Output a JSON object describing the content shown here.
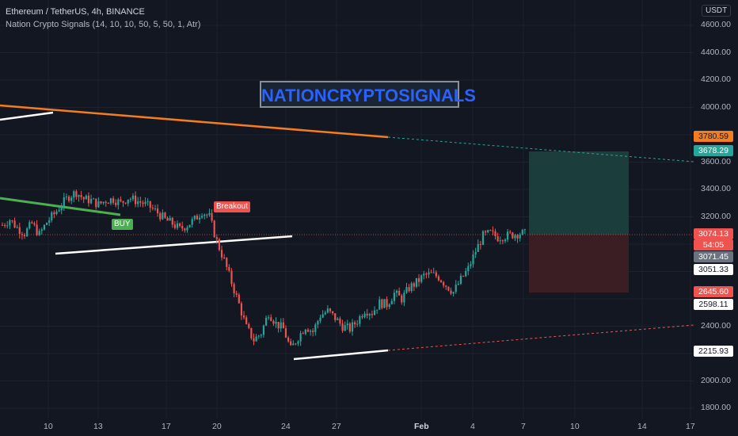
{
  "header": {
    "title": "Ethereum / TetherUS, 4h, BINANCE",
    "indicator": "Nation Crypto Signals  (14, 10, 10, 50, 5, 50, 1, Atr)",
    "currency": "USDT"
  },
  "watermark": "NATIONCRYPTOSIGNALS",
  "badges": {
    "buy": "BUY",
    "breakout": "Breakout"
  },
  "price_axis": [
    "4600.00",
    "4400.00",
    "4200.00",
    "4000.00",
    "3600.00",
    "3400.00",
    "3200.00",
    "2400.00",
    "2000.00",
    "1800.00"
  ],
  "price_tags": {
    "t3780": "3780.59",
    "t3678": "3678.29",
    "t3074": "3074.13",
    "countdown": "54:05",
    "t3071": "3071.45",
    "t3051": "3051.33",
    "t2645": "2645.60",
    "t2598": "2598.11",
    "t2215": "2215.93"
  },
  "time_axis": [
    "10",
    "13",
    "17",
    "20",
    "24",
    "27",
    "Feb",
    "4",
    "7",
    "10",
    "14",
    "17"
  ],
  "colors": {
    "bg": "#131722",
    "up": "#26a69a",
    "down": "#ef5350",
    "orange": "#f57c1f",
    "green_line": "#4caf50",
    "target_zone": "#1b3f3d",
    "stop_zone": "#3d1f25"
  },
  "chart_data": {
    "type": "candlestick",
    "symbol": "ETHUSDT",
    "interval": "4h",
    "ylim": [
      1750,
      4700
    ],
    "levels": {
      "take_profit": 3678.29,
      "entry": 3074.13,
      "stop_loss": 2645.6,
      "last": 3071.45
    },
    "close_path": [
      3140,
      3180,
      3120,
      3080,
      3150,
      3070,
      3160,
      3220,
      3290,
      3350,
      3380,
      3330,
      3320,
      3290,
      3320,
      3330,
      3300,
      3340,
      3320,
      3300,
      3270,
      3230,
      3180,
      3150,
      3110,
      3140,
      3180,
      3240,
      3200,
      3020,
      2880,
      2720,
      2560,
      2390,
      2300,
      2350,
      2500,
      2420,
      2380,
      2230,
      2320,
      2400,
      2360,
      2480,
      2510,
      2460,
      2400,
      2380,
      2440,
      2520,
      2500,
      2570,
      2560,
      2640,
      2600,
      2680,
      2720,
      2770,
      2780,
      2760,
      2700,
      2650,
      2740,
      2820,
      2950,
      3060,
      3080,
      3050,
      3060,
      3070,
      3080,
      3074
    ]
  }
}
